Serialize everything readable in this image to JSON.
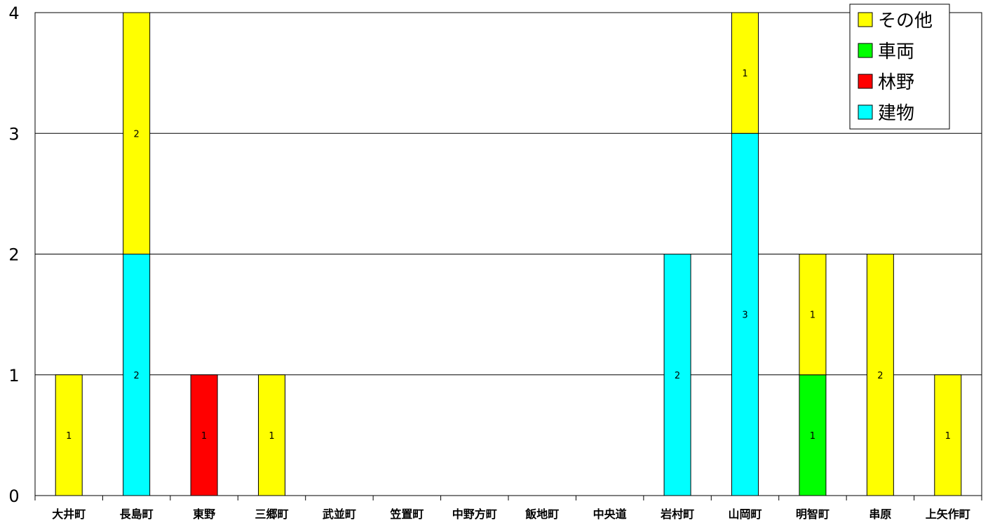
{
  "chart_data": {
    "type": "bar",
    "stacked": true,
    "categories": [
      "大井町",
      "長島町",
      "東野",
      "三郷町",
      "武並町",
      "笠置町",
      "中野方町",
      "飯地町",
      "中央道",
      "岩村町",
      "山岡町",
      "明智町",
      "串原",
      "上矢作町"
    ],
    "series": [
      {
        "name": "建物",
        "color": "#00FFFF",
        "values": [
          0,
          2,
          0,
          0,
          0,
          0,
          0,
          0,
          0,
          2,
          3,
          0,
          0,
          0
        ]
      },
      {
        "name": "林野",
        "color": "#FF0000",
        "values": [
          0,
          0,
          1,
          0,
          0,
          0,
          0,
          0,
          0,
          0,
          0,
          0,
          0,
          0
        ]
      },
      {
        "name": "車両",
        "color": "#00FF00",
        "values": [
          0,
          0,
          0,
          0,
          0,
          0,
          0,
          0,
          0,
          0,
          0,
          1,
          0,
          0
        ]
      },
      {
        "name": "その他",
        "color": "#FFFF00",
        "values": [
          1,
          2,
          0,
          1,
          0,
          0,
          0,
          0,
          0,
          0,
          1,
          1,
          2,
          1
        ]
      }
    ],
    "legend_order": [
      "その他",
      "車両",
      "林野",
      "建物"
    ],
    "ylim": [
      0,
      4
    ],
    "yticks": [
      "0",
      "1",
      "2",
      "3",
      "4"
    ],
    "grid": true,
    "legend_position": "top-right",
    "title": "",
    "xlabel": "",
    "ylabel": ""
  }
}
